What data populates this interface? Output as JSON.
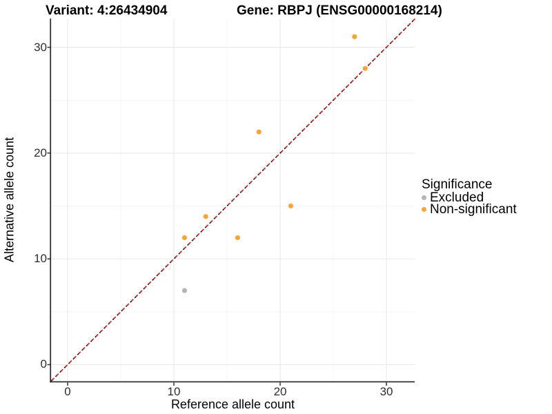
{
  "figure": {
    "titles": {
      "variant": "Variant: 4:26434904",
      "gene": "Gene: RBPJ (ENSG00000168214)"
    }
  },
  "axes": {
    "x": {
      "label": "Reference allele count",
      "tick_labels": [
        "0",
        "10",
        "20",
        "30"
      ],
      "tick_values": [
        0,
        10,
        20,
        30
      ],
      "minor_tick_values": [
        5,
        15,
        25
      ],
      "domain": [
        -1.56,
        32.66
      ]
    },
    "y": {
      "label": "Alternative allele count",
      "tick_labels": [
        "0",
        "10",
        "20",
        "30"
      ],
      "tick_values": [
        0,
        10,
        20,
        30
      ],
      "minor_tick_values": [
        5,
        15,
        25
      ],
      "domain": [
        -1.6,
        32.71
      ]
    }
  },
  "legend": {
    "title": "Significance",
    "items": [
      {
        "label": "Excluded",
        "color": "#b5b5b5"
      },
      {
        "label": "Non-significant",
        "color": "#f4a53c"
      }
    ]
  },
  "chart_data": {
    "type": "scatter",
    "title": "Variant: 4:26434904   Gene: RBPJ (ENSG00000168214)",
    "xlabel": "Reference allele count",
    "ylabel": "Alternative allele count",
    "xlim": [
      -1.6,
      32.7
    ],
    "ylim": [
      -1.6,
      32.7
    ],
    "grid": true,
    "legend_position": "right",
    "legend_title": "Significance",
    "series": [
      {
        "name": "Excluded",
        "color": "#b5b5b5",
        "points": [
          {
            "x": 11,
            "y": 7
          }
        ]
      },
      {
        "name": "Non-significant",
        "color": "#f4a53c",
        "points": [
          {
            "x": 11,
            "y": 12
          },
          {
            "x": 13,
            "y": 14
          },
          {
            "x": 16,
            "y": 12
          },
          {
            "x": 18,
            "y": 22
          },
          {
            "x": 21,
            "y": 15
          },
          {
            "x": 27,
            "y": 31
          },
          {
            "x": 28,
            "y": 28
          }
        ]
      }
    ],
    "reference_lines": [
      {
        "name": "identity-black",
        "slope": 1,
        "intercept": 0,
        "style": "dashed",
        "color": "#1a1a1a"
      },
      {
        "name": "identity-red",
        "slope": 1,
        "intercept": 0,
        "style": "dashed",
        "color": "#c62f2f"
      }
    ]
  },
  "colors": {
    "grid_major": "#e8e8e8",
    "grid_minor": "#f4f4f4",
    "axis_line": "#303030",
    "tick_mark": "#333333"
  }
}
